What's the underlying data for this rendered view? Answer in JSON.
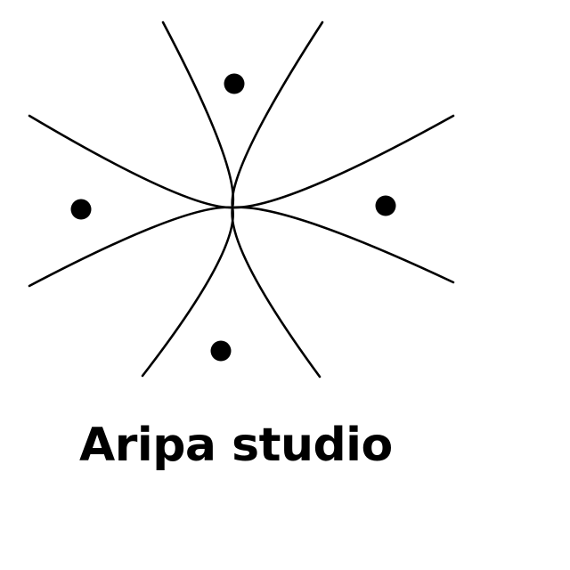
{
  "logo": {
    "brand_name": "Aripa studio",
    "mark_icon": "four-petal-curves-with-dots-icon",
    "ink_color": "#000000",
    "background_color": "#ffffff"
  }
}
